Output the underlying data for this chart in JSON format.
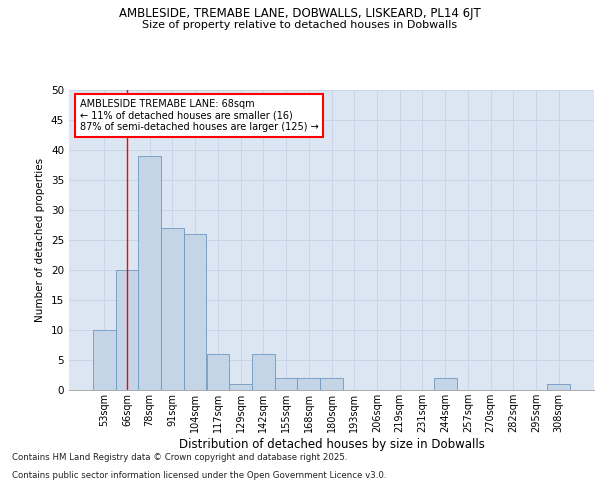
{
  "title1": "AMBLESIDE, TREMABE LANE, DOBWALLS, LISKEARD, PL14 6JT",
  "title2": "Size of property relative to detached houses in Dobwalls",
  "xlabel": "Distribution of detached houses by size in Dobwalls",
  "ylabel": "Number of detached properties",
  "categories": [
    "53sqm",
    "66sqm",
    "78sqm",
    "91sqm",
    "104sqm",
    "117sqm",
    "129sqm",
    "142sqm",
    "155sqm",
    "168sqm",
    "180sqm",
    "193sqm",
    "206sqm",
    "219sqm",
    "231sqm",
    "244sqm",
    "257sqm",
    "270sqm",
    "282sqm",
    "295sqm",
    "308sqm"
  ],
  "values": [
    10,
    20,
    39,
    27,
    26,
    6,
    1,
    6,
    2,
    2,
    2,
    0,
    0,
    0,
    0,
    2,
    0,
    0,
    0,
    0,
    1
  ],
  "bar_color": "#c5d5e8",
  "bar_edge_color": "#7098c0",
  "grid_color": "#c8d4e8",
  "background_color": "#dce6f2",
  "annotation_line1": "AMBLESIDE TREMABE LANE: 68sqm",
  "annotation_line2": "← 11% of detached houses are smaller (16)",
  "annotation_line3": "87% of semi-detached houses are larger (125) →",
  "vline_x": 1,
  "ylim": [
    0,
    50
  ],
  "yticks": [
    0,
    5,
    10,
    15,
    20,
    25,
    30,
    35,
    40,
    45,
    50
  ],
  "footnote1": "Contains HM Land Registry data © Crown copyright and database right 2025.",
  "footnote2": "Contains public sector information licensed under the Open Government Licence v3.0."
}
